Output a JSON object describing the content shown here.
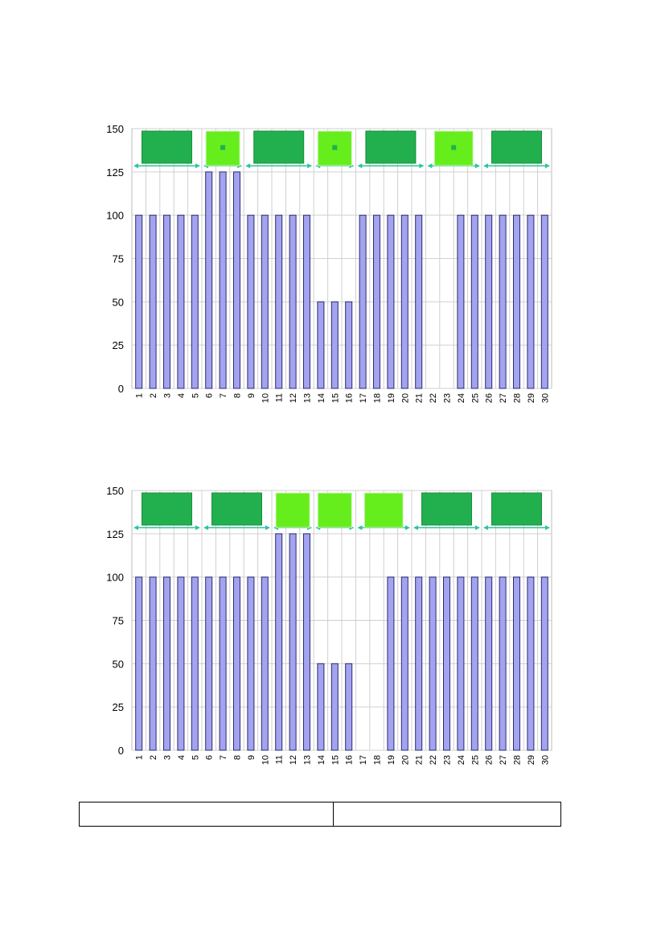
{
  "colors": {
    "bar_fill": "#a3a3f0",
    "bar_stroke": "#2b2b6e",
    "grid": "#d0d0d0",
    "arrow": "#2ec4a0",
    "dark_green": "#22b04f",
    "light_green": "#66ee1c"
  },
  "chart_data": [
    {
      "type": "bar",
      "categories": [
        "1",
        "2",
        "3",
        "4",
        "5",
        "6",
        "7",
        "8",
        "9",
        "10",
        "11",
        "12",
        "13",
        "14",
        "15",
        "16",
        "17",
        "18",
        "19",
        "20",
        "21",
        "22",
        "23",
        "24",
        "25",
        "26",
        "27",
        "28",
        "29",
        "30"
      ],
      "values": [
        100,
        100,
        100,
        100,
        100,
        125,
        125,
        125,
        100,
        100,
        100,
        100,
        100,
        50,
        50,
        50,
        100,
        100,
        100,
        100,
        100,
        0,
        0,
        100,
        100,
        100,
        100,
        100,
        100,
        100
      ],
      "ylim": [
        0,
        150
      ],
      "yticks": [
        "0",
        "25",
        "50",
        "75",
        "100",
        "125",
        "150"
      ],
      "grid": true,
      "segments": [
        {
          "from": 1,
          "to": 5,
          "swatch": "dark-green",
          "dot": false
        },
        {
          "from": 6,
          "to": 8,
          "swatch": "light-green",
          "dot": true
        },
        {
          "from": 9,
          "to": 13,
          "swatch": "dark-green",
          "dot": false
        },
        {
          "from": 14,
          "to": 16,
          "swatch": "light-green",
          "dot": true
        },
        {
          "from": 17,
          "to": 21,
          "swatch": "dark-green",
          "dot": false
        },
        {
          "from": 22,
          "to": 25,
          "swatch": "light-green",
          "dot": true
        },
        {
          "from": 26,
          "to": 30,
          "swatch": "dark-green",
          "dot": false
        }
      ]
    },
    {
      "type": "bar",
      "categories": [
        "1",
        "2",
        "3",
        "4",
        "5",
        "6",
        "7",
        "8",
        "9",
        "10",
        "11",
        "12",
        "13",
        "14",
        "15",
        "16",
        "17",
        "18",
        "19",
        "20",
        "21",
        "22",
        "23",
        "24",
        "25",
        "26",
        "27",
        "28",
        "29",
        "30"
      ],
      "values": [
        100,
        100,
        100,
        100,
        100,
        100,
        100,
        100,
        100,
        100,
        125,
        125,
        125,
        50,
        50,
        50,
        0,
        0,
        100,
        100,
        100,
        100,
        100,
        100,
        100,
        100,
        100,
        100,
        100,
        100
      ],
      "ylim": [
        0,
        150
      ],
      "yticks": [
        "0",
        "25",
        "50",
        "75",
        "100",
        "125",
        "150"
      ],
      "grid": true,
      "segments": [
        {
          "from": 1,
          "to": 5,
          "swatch": "dark-green",
          "dot": false
        },
        {
          "from": 6,
          "to": 10,
          "swatch": "dark-green",
          "dot": false
        },
        {
          "from": 11,
          "to": 13,
          "swatch": "light-green",
          "dot": false
        },
        {
          "from": 14,
          "to": 16,
          "swatch": "light-green",
          "dot": false
        },
        {
          "from": 17,
          "to": 20,
          "swatch": "light-green",
          "dot": false
        },
        {
          "from": 21,
          "to": 25,
          "swatch": "dark-green",
          "dot": false
        },
        {
          "from": 26,
          "to": 30,
          "swatch": "dark-green",
          "dot": false
        }
      ]
    }
  ]
}
